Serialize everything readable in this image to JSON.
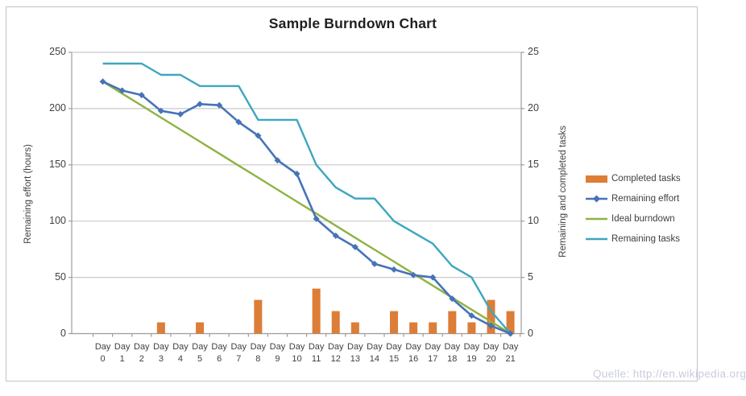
{
  "title": "Sample Burndown Chart",
  "watermark": "Quelle: http://en.wikipedia.org",
  "colors": {
    "completed_tasks": "#dc7d38",
    "remaining_effort": "#4673b8",
    "ideal_burndown": "#8fb342",
    "remaining_tasks": "#3ea6bf",
    "gridline": "#c9c9c9",
    "axis_line": "#9c9c9c",
    "tick_text": "#3f3f3f",
    "title_text": "#1f1f1f",
    "watermark_text": "#c9ccdd"
  },
  "chart_data": {
    "type": "combo (bar + line, dual axis)",
    "title": "Sample Burndown Chart",
    "grid": true,
    "legend_position": "right",
    "legend": [
      "Completed tasks",
      "Remaining effort",
      "Ideal burndown",
      "Remaining tasks"
    ],
    "categories": [
      "Day 0",
      "Day 1",
      "Day 2",
      "Day 3",
      "Day 4",
      "Day 5",
      "Day 6",
      "Day 7",
      "Day 8",
      "Day 9",
      "Day 10",
      "Day 11",
      "Day 12",
      "Day 13",
      "Day 14",
      "Day 15",
      "Day 16",
      "Day 17",
      "Day 18",
      "Day 19",
      "Day 20",
      "Day 21"
    ],
    "left_axis": {
      "title": "Remaining effort (hours)",
      "min": 0,
      "max": 250,
      "step": 50,
      "ticks": [
        250,
        200,
        150,
        100,
        50,
        0
      ]
    },
    "right_axis": {
      "title": "Remaining and  completed tasks",
      "min": 0,
      "max": 25,
      "step": 5,
      "ticks": [
        25,
        20,
        15,
        10,
        5,
        0
      ]
    },
    "series": [
      {
        "name": "Completed tasks",
        "type": "bar",
        "axis": "right",
        "values": [
          0,
          0,
          0,
          1,
          0,
          1,
          0,
          0,
          3,
          0,
          0,
          4,
          2,
          1,
          0,
          2,
          1,
          1,
          2,
          1,
          3,
          2
        ]
      },
      {
        "name": "Remaining effort",
        "type": "line",
        "marker": "diamond",
        "axis": "left",
        "values": [
          224,
          216,
          212,
          198,
          195,
          204,
          203,
          188,
          176,
          154,
          142,
          102,
          87,
          77,
          62,
          57,
          52,
          50,
          31,
          16,
          7,
          0
        ]
      },
      {
        "name": "Ideal burndown",
        "type": "line",
        "axis": "left",
        "values": [
          224,
          213.3,
          202.7,
          192,
          181.3,
          170.7,
          160,
          149.3,
          138.7,
          128,
          117.3,
          106.7,
          96,
          85.3,
          74.7,
          64,
          53.3,
          42.7,
          32,
          21.3,
          10.7,
          0
        ]
      },
      {
        "name": "Remaining tasks",
        "type": "line",
        "axis": "right",
        "values": [
          24,
          24,
          24,
          23,
          23,
          22,
          22,
          22,
          19,
          19,
          19,
          15,
          13,
          12,
          12,
          10,
          9,
          8,
          6,
          5,
          2,
          0
        ]
      }
    ]
  }
}
